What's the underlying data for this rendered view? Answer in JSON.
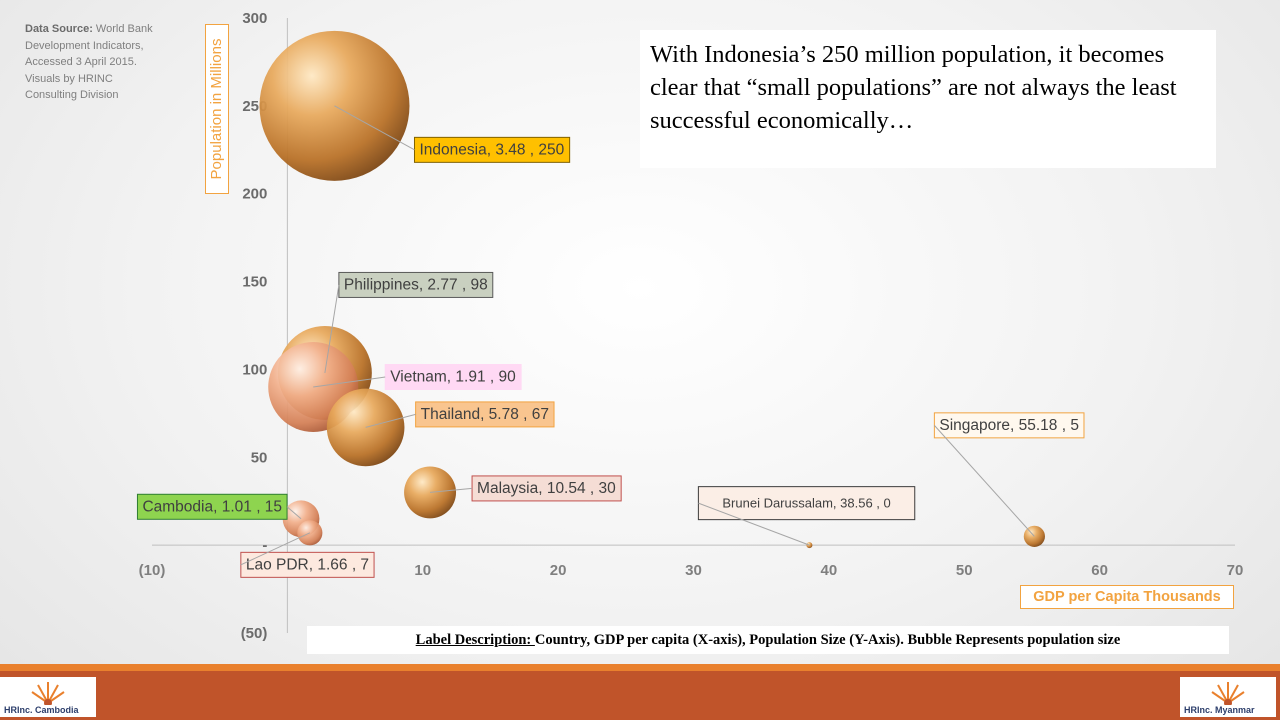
{
  "source_note": {
    "label": "Data Source:",
    "text": " World Bank Development Indicators, Accessed 3 April 2015.  Visuals by HRINC Consulting Division"
  },
  "callout_text": "With Indonesia’s 250 million population, it becomes clear that “small populations” are not always the least successful economically…",
  "description": {
    "label": "Label Description: ",
    "text": " Country, GDP per capita (X-axis), Population Size (Y-Axis).  Bubble Represents population size"
  },
  "logos": {
    "left": "HRInc. Cambodia",
    "right": "HRInc. Myanmar"
  },
  "colors": {
    "bubble": "#d9944a",
    "footer": "#c0542a",
    "footer_accent": "#e9802d",
    "axis_title": "#f2a340"
  },
  "chart_data": {
    "type": "scatter",
    "title": "",
    "xlabel": "GDP per Capita Thousands",
    "ylabel": "Population in Millions",
    "xlim": [
      -10,
      70
    ],
    "ylim": [
      -50,
      300
    ],
    "x_ticks": [
      -10,
      0,
      10,
      20,
      30,
      40,
      50,
      60,
      70
    ],
    "x_tick_labels": [
      "(10)",
      "",
      "10",
      "20",
      "30",
      "40",
      "50",
      "60",
      "70"
    ],
    "y_ticks": [
      -50,
      0,
      50,
      100,
      150,
      200,
      250,
      300
    ],
    "y_tick_labels": [
      "(50)",
      "-",
      "50",
      "100",
      "150",
      "200",
      "250",
      "300"
    ],
    "bubble_size": "population",
    "points": [
      {
        "country": "Indonesia",
        "x": 3.48,
        "y": 250,
        "label": "Indonesia, 3.48 , 250",
        "label_fill": "#ffc000",
        "label_border": "#7f6000"
      },
      {
        "country": "Philippines",
        "x": 2.77,
        "y": 98,
        "label": "Philippines,  2.77 , 98",
        "label_fill": "#c9d0c0",
        "label_border": "#595959"
      },
      {
        "country": "Vietnam",
        "x": 1.91,
        "y": 90,
        "label": "Vietnam,  1.91 , 90",
        "label_fill": "#ffd9f4",
        "label_border": "#ffd9f4"
      },
      {
        "country": "Thailand",
        "x": 5.78,
        "y": 67,
        "label": "Thailand,  5.78 , 67",
        "label_fill": "#f9c58f",
        "label_border": "#f2a340"
      },
      {
        "country": "Malaysia",
        "x": 10.54,
        "y": 30,
        "label": "Malaysia,  10.54 , 30",
        "label_fill": "#f5ddd5",
        "label_border": "#c0504d"
      },
      {
        "country": "Cambodia",
        "x": 1.01,
        "y": 15,
        "label": "Cambodia,  1.01 , 15",
        "label_fill": "#8ed44f",
        "label_border": "#2e7d32"
      },
      {
        "country": "Lao PDR",
        "x": 1.66,
        "y": 7,
        "label": "Lao PDR,  1.66 , 7",
        "label_fill": "#fde9df",
        "label_border": "#c0504d"
      },
      {
        "country": "Brunei Darussalam",
        "x": 38.56,
        "y": 0,
        "label": "Brunei Darussalam,  38.56 ,  0",
        "label_fill": "#fbeee6",
        "label_border": "#3b3b3b"
      },
      {
        "country": "Singapore",
        "x": 55.18,
        "y": 5,
        "label": "Singapore,  55.18 , 5",
        "label_fill": "#fff8ee",
        "label_border": "#f2a340"
      }
    ]
  }
}
